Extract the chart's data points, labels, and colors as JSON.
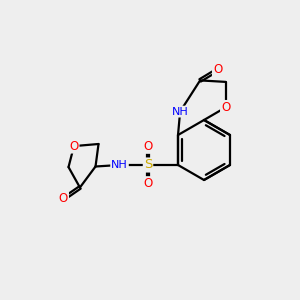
{
  "bg_color": "#eeeeee",
  "bond_color": "#000000",
  "bond_width": 1.6,
  "atom_colors": {
    "O": "#ff0000",
    "N": "#0000ff",
    "S": "#ccaa00",
    "H": "#008080",
    "C": "#000000"
  },
  "font_size": 8.5,
  "figsize": [
    3.0,
    3.0
  ],
  "dpi": 100,
  "xlim": [
    0,
    10
  ],
  "ylim": [
    0,
    10
  ]
}
